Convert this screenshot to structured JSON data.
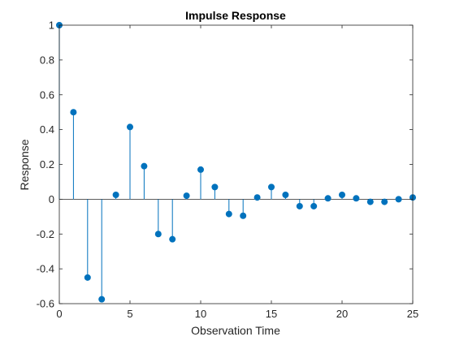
{
  "chart_data": {
    "type": "stem",
    "title": "Impulse Response",
    "xlabel": "Observation Time",
    "ylabel": "Response",
    "xlim": [
      0,
      25
    ],
    "ylim": [
      -0.6,
      1
    ],
    "xticks": [
      0,
      5,
      10,
      15,
      20,
      25
    ],
    "xtick_labels": [
      "0",
      "5",
      "10",
      "15",
      "20",
      "25"
    ],
    "yticks": [
      -0.6,
      -0.4,
      -0.2,
      0,
      0.2,
      0.4,
      0.6,
      0.8,
      1
    ],
    "ytick_labels": [
      "-0.6",
      "-0.4",
      "-0.2",
      "0",
      "0.2",
      "0.4",
      "0.6",
      "0.8",
      "1"
    ],
    "grid": false,
    "series": [
      {
        "x": [
          0,
          1,
          2,
          3,
          4,
          5,
          6,
          7,
          8,
          9,
          10,
          11,
          12,
          13,
          14,
          15,
          16,
          17,
          18,
          19,
          20,
          21,
          22,
          23,
          24,
          25
        ],
        "values": [
          1.0,
          0.5,
          -0.45,
          -0.575,
          0.025,
          0.415,
          0.19,
          -0.2,
          -0.23,
          0.02,
          0.17,
          0.07,
          -0.085,
          -0.095,
          0.01,
          0.07,
          0.025,
          -0.04,
          -0.04,
          0.005,
          0.025,
          0.005,
          -0.015,
          -0.015,
          0.0,
          0.01
        ]
      }
    ],
    "colors": {
      "stem": "#0072BD",
      "axis": "#262626",
      "baseline": "#262626"
    }
  }
}
